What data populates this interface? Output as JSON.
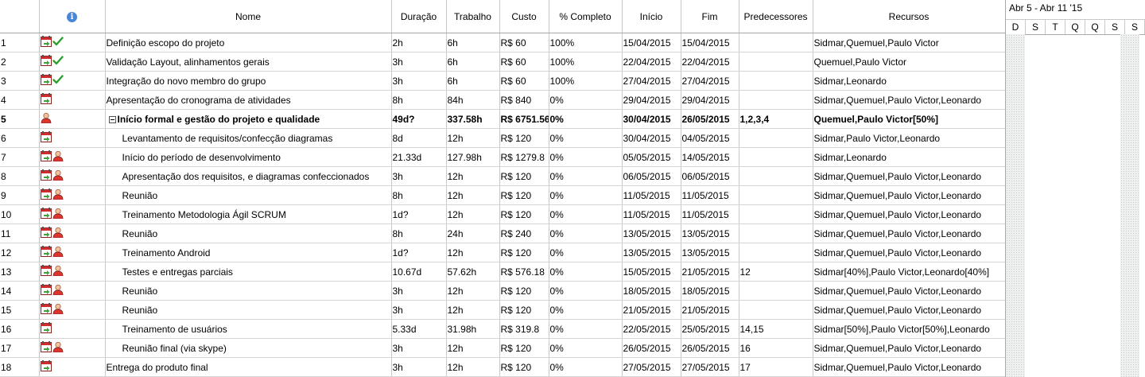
{
  "columns": {
    "num": "",
    "indicators_icon": "info-icon",
    "name": "Nome",
    "duration": "Duração",
    "work": "Trabalho",
    "cost": "Custo",
    "percent": "% Completo",
    "start": "Início",
    "finish": "Fim",
    "predecessors": "Predecessores",
    "resources": "Recursos"
  },
  "gantt": {
    "week_label": "Abr 5 - Abr 11 '15",
    "days": [
      "D",
      "S",
      "T",
      "Q",
      "Q",
      "S",
      "S"
    ]
  },
  "tasks": [
    {
      "id": "1",
      "icons": [
        "calendar",
        "check"
      ],
      "name": "Definição escopo do projeto",
      "level": 0,
      "summary": false,
      "duration": "2h",
      "work": "6h",
      "cost": "R$ 60",
      "percent": "100%",
      "start": "15/04/2015",
      "finish": "15/04/2015",
      "predecessors": "",
      "resources": "Sidmar,Quemuel,Paulo Victor"
    },
    {
      "id": "2",
      "icons": [
        "calendar",
        "check"
      ],
      "name": "Validação Layout, alinhamentos gerais",
      "level": 0,
      "summary": false,
      "duration": "3h",
      "work": "6h",
      "cost": "R$ 60",
      "percent": "100%",
      "start": "22/04/2015",
      "finish": "22/04/2015",
      "predecessors": "",
      "resources": "Quemuel,Paulo Victor"
    },
    {
      "id": "3",
      "icons": [
        "calendar",
        "check"
      ],
      "name": "Integração do novo membro do grupo",
      "level": 0,
      "summary": false,
      "duration": "3h",
      "work": "6h",
      "cost": "R$ 60",
      "percent": "100%",
      "start": "27/04/2015",
      "finish": "27/04/2015",
      "predecessors": "",
      "resources": "Sidmar,Leonardo"
    },
    {
      "id": "4",
      "icons": [
        "calendar"
      ],
      "name": "Apresentação do cronograma de atividades",
      "level": 0,
      "summary": false,
      "duration": "8h",
      "work": "84h",
      "cost": "R$ 840",
      "percent": "0%",
      "start": "29/04/2015",
      "finish": "29/04/2015",
      "predecessors": "",
      "resources": "Sidmar,Quemuel,Paulo Victor,Leonardo"
    },
    {
      "id": "5",
      "icons": [
        "person"
      ],
      "name": "Início formal e gestão do projeto e qualidade",
      "level": 0,
      "summary": true,
      "duration": "49d?",
      "work": "337.58h",
      "cost": "R$ 6751.56",
      "percent": "0%",
      "start": "30/04/2015",
      "finish": "26/05/2015",
      "predecessors": "1,2,3,4",
      "resources": "Quemuel,Paulo Victor[50%]"
    },
    {
      "id": "6",
      "icons": [
        "calendar"
      ],
      "name": "Levantamento de requisitos/confecção diagramas",
      "level": 1,
      "summary": false,
      "duration": "8d",
      "work": "12h",
      "cost": "R$ 120",
      "percent": "0%",
      "start": "30/04/2015",
      "finish": "04/05/2015",
      "predecessors": "",
      "resources": "Sidmar,Paulo Victor,Leonardo"
    },
    {
      "id": "7",
      "icons": [
        "calendar",
        "person"
      ],
      "name": "Início do período de desenvolvimento",
      "level": 1,
      "summary": false,
      "duration": "21.33d",
      "work": "127.98h",
      "cost": "R$ 1279.8",
      "percent": "0%",
      "start": "05/05/2015",
      "finish": "14/05/2015",
      "predecessors": "",
      "resources": "Sidmar,Leonardo"
    },
    {
      "id": "8",
      "icons": [
        "calendar",
        "person"
      ],
      "name": "Apresentação dos requisitos, e diagramas confeccionados",
      "level": 1,
      "summary": false,
      "duration": "3h",
      "work": "12h",
      "cost": "R$ 120",
      "percent": "0%",
      "start": "06/05/2015",
      "finish": "06/05/2015",
      "predecessors": "",
      "resources": "Sidmar,Quemuel,Paulo Victor,Leonardo"
    },
    {
      "id": "9",
      "icons": [
        "calendar",
        "person"
      ],
      "name": "Reunião",
      "level": 1,
      "summary": false,
      "duration": "8h",
      "work": "12h",
      "cost": "R$ 120",
      "percent": "0%",
      "start": "11/05/2015",
      "finish": "11/05/2015",
      "predecessors": "",
      "resources": "Sidmar,Quemuel,Paulo Victor,Leonardo"
    },
    {
      "id": "10",
      "icons": [
        "calendar",
        "person"
      ],
      "name": "Treinamento Metodologia Ágil SCRUM",
      "level": 1,
      "summary": false,
      "duration": "1d?",
      "work": "12h",
      "cost": "R$ 120",
      "percent": "0%",
      "start": "11/05/2015",
      "finish": "11/05/2015",
      "predecessors": "",
      "resources": "Sidmar,Quemuel,Paulo Victor,Leonardo"
    },
    {
      "id": "11",
      "icons": [
        "calendar",
        "person"
      ],
      "name": "Reunião",
      "level": 1,
      "summary": false,
      "duration": "8h",
      "work": "24h",
      "cost": "R$ 240",
      "percent": "0%",
      "start": "13/05/2015",
      "finish": "13/05/2015",
      "predecessors": "",
      "resources": "Sidmar,Quemuel,Paulo Victor,Leonardo"
    },
    {
      "id": "12",
      "icons": [
        "calendar",
        "person"
      ],
      "name": "Treinamento Android",
      "level": 1,
      "summary": false,
      "duration": "1d?",
      "work": "12h",
      "cost": "R$ 120",
      "percent": "0%",
      "start": "13/05/2015",
      "finish": "13/05/2015",
      "predecessors": "",
      "resources": "Sidmar,Quemuel,Paulo Victor,Leonardo"
    },
    {
      "id": "13",
      "icons": [
        "calendar",
        "person"
      ],
      "name": "Testes e entregas parciais",
      "level": 1,
      "summary": false,
      "duration": "10.67d",
      "work": "57.62h",
      "cost": "R$ 576.18",
      "percent": "0%",
      "start": "15/05/2015",
      "finish": "21/05/2015",
      "predecessors": "12",
      "resources": "Sidmar[40%],Paulo Victor,Leonardo[40%]"
    },
    {
      "id": "14",
      "icons": [
        "calendar",
        "person"
      ],
      "name": "Reunião",
      "level": 1,
      "summary": false,
      "duration": "3h",
      "work": "12h",
      "cost": "R$ 120",
      "percent": "0%",
      "start": "18/05/2015",
      "finish": "18/05/2015",
      "predecessors": "",
      "resources": "Sidmar,Quemuel,Paulo Victor,Leonardo"
    },
    {
      "id": "15",
      "icons": [
        "calendar",
        "person"
      ],
      "name": "Reunião",
      "level": 1,
      "summary": false,
      "duration": "3h",
      "work": "12h",
      "cost": "R$ 120",
      "percent": "0%",
      "start": "21/05/2015",
      "finish": "21/05/2015",
      "predecessors": "",
      "resources": "Sidmar,Quemuel,Paulo Victor,Leonardo"
    },
    {
      "id": "16",
      "icons": [
        "calendar"
      ],
      "name": "Treinamento de usuários",
      "level": 1,
      "summary": false,
      "duration": "5.33d",
      "work": "31.98h",
      "cost": "R$ 319.8",
      "percent": "0%",
      "start": "22/05/2015",
      "finish": "25/05/2015",
      "predecessors": "14,15",
      "resources": "Sidmar[50%],Paulo Victor[50%],Leonardo"
    },
    {
      "id": "17",
      "icons": [
        "calendar",
        "person"
      ],
      "name": "Reunião final (via skype)",
      "level": 1,
      "summary": false,
      "duration": "3h",
      "work": "12h",
      "cost": "R$ 120",
      "percent": "0%",
      "start": "26/05/2015",
      "finish": "26/05/2015",
      "predecessors": "16",
      "resources": "Sidmar,Quemuel,Paulo Victor,Leonardo"
    },
    {
      "id": "18",
      "icons": [
        "calendar"
      ],
      "name": "Entrega do produto final",
      "level": 0,
      "summary": false,
      "duration": "3h",
      "work": "12h",
      "cost": "R$ 120",
      "percent": "0%",
      "start": "27/05/2015",
      "finish": "27/05/2015",
      "predecessors": "17",
      "resources": "Sidmar,Quemuel,Paulo Victor,Leonardo"
    }
  ]
}
